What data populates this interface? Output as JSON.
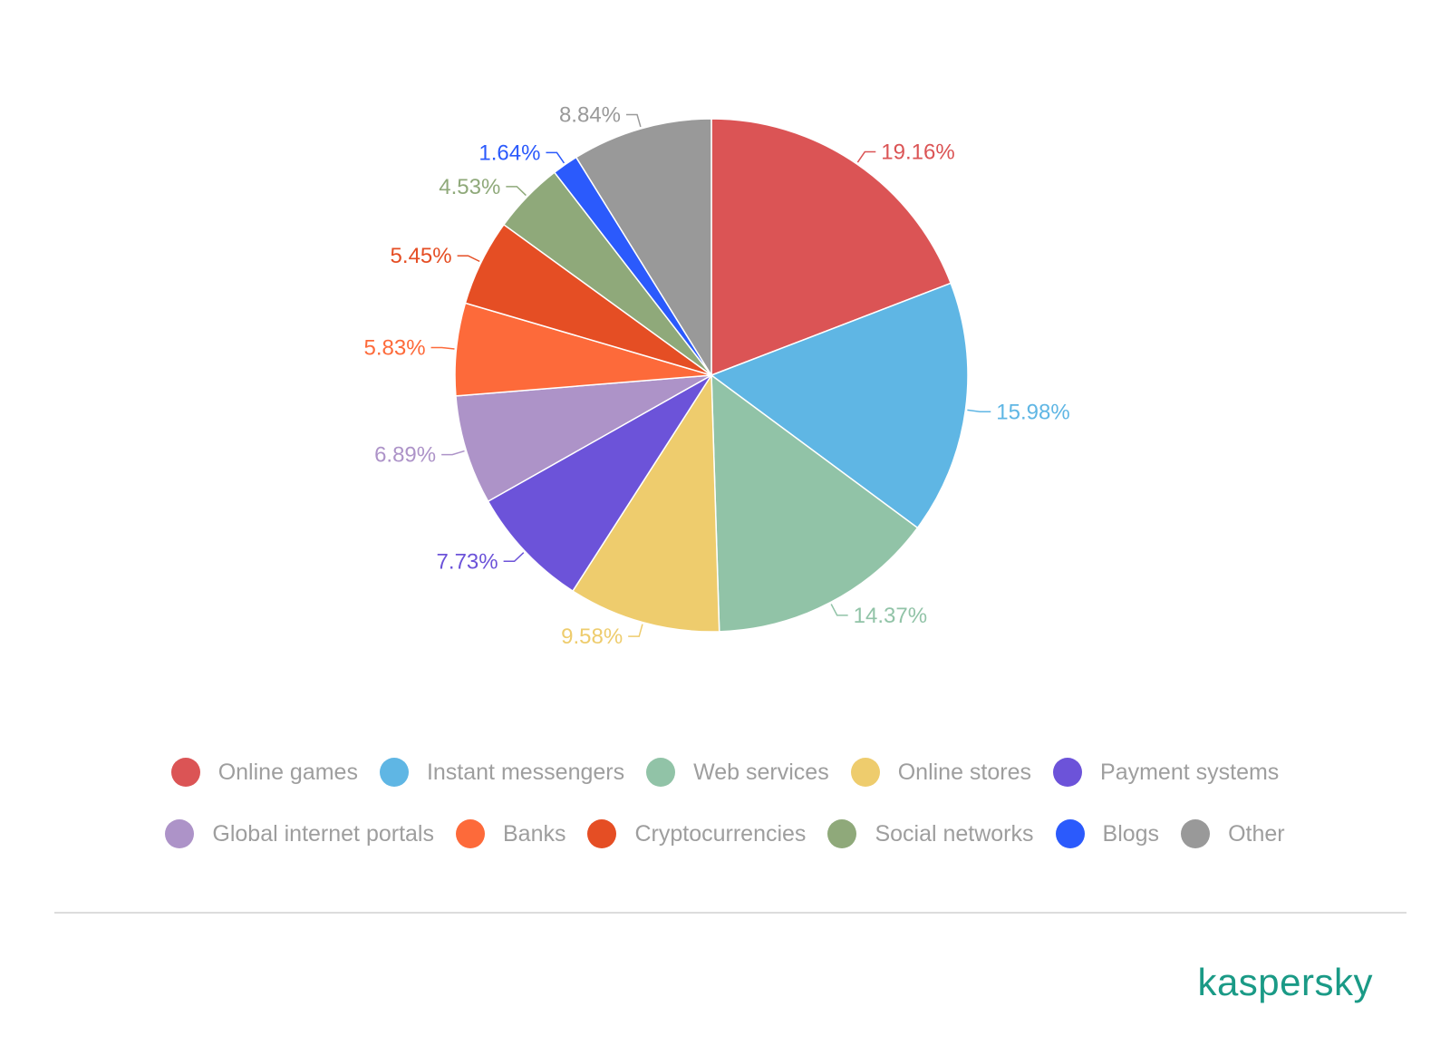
{
  "chart_data": {
    "type": "pie",
    "slices": [
      {
        "name": "Online games",
        "value": 19.16,
        "label": "19.16%",
        "color": "#db5455"
      },
      {
        "name": "Instant messengers",
        "value": 15.98,
        "label": "15.98%",
        "color": "#5fb6e4"
      },
      {
        "name": "Web services",
        "value": 14.37,
        "label": "14.37%",
        "color": "#91c3a7"
      },
      {
        "name": "Online stores",
        "value": 9.58,
        "label": "9.58%",
        "color": "#eecc6d"
      },
      {
        "name": "Payment systems",
        "value": 7.73,
        "label": "7.73%",
        "color": "#6c53d9"
      },
      {
        "name": "Global internet portals",
        "value": 6.89,
        "label": "6.89%",
        "color": "#ad93c8"
      },
      {
        "name": "Banks",
        "value": 5.83,
        "label": "5.83%",
        "color": "#fd6a3a"
      },
      {
        "name": "Cryptocurrencies",
        "value": 5.45,
        "label": "5.45%",
        "color": "#e54e24"
      },
      {
        "name": "Social networks",
        "value": 4.53,
        "label": "4.53%",
        "color": "#8fa97a"
      },
      {
        "name": "Blogs",
        "value": 1.64,
        "label": "1.64%",
        "color": "#2b5afc"
      },
      {
        "name": "Other",
        "value": 8.84,
        "label": "8.84%",
        "color": "#999999"
      }
    ],
    "legend_placement": "bottom"
  },
  "logo_text": "kaspersky",
  "legend_text_color": "#9e9e9e",
  "logo_color": "#1a9a86"
}
